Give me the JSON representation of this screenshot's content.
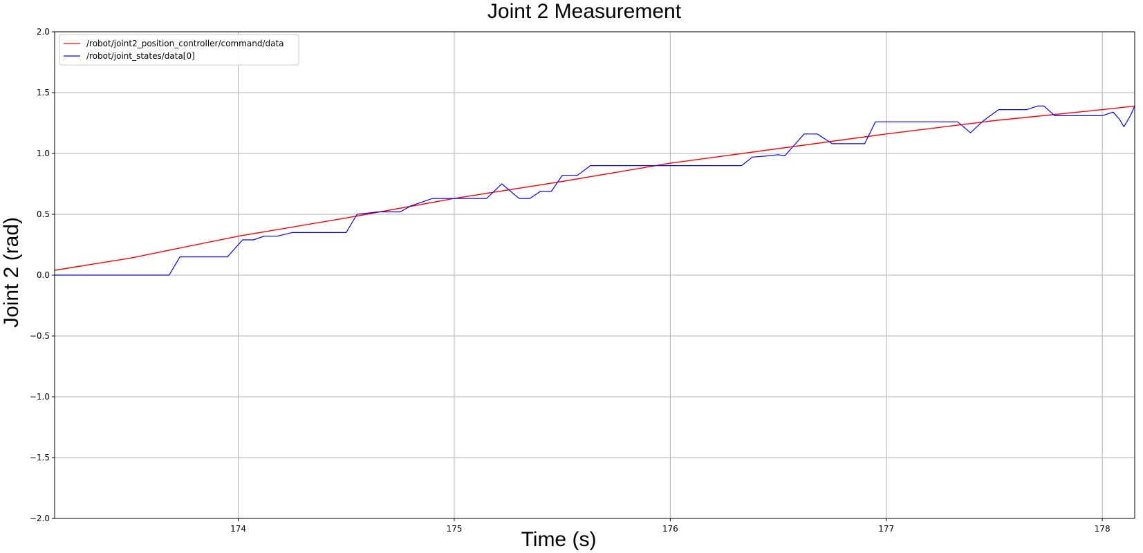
{
  "chart_data": {
    "type": "line",
    "title": "Joint 2 Measurement",
    "xlabel": "Time (s)",
    "ylabel": "Joint 2 (rad)",
    "xlim": [
      173.15,
      178.15
    ],
    "ylim": [
      -2.0,
      2.0
    ],
    "xticks": [
      174,
      175,
      176,
      177,
      178
    ],
    "xtick_labels": [
      "174",
      "175",
      "176",
      "177",
      "178"
    ],
    "yticks": [
      -2.0,
      -1.5,
      -1.0,
      -0.5,
      0.0,
      0.5,
      1.0,
      1.5,
      2.0
    ],
    "ytick_labels": [
      "−2.0",
      "−1.5",
      "−1.0",
      "−0.5",
      "0.0",
      "0.5",
      "1.0",
      "1.5",
      "2.0"
    ],
    "grid": true,
    "legend_position": "top-left",
    "series": [
      {
        "name": "/robot/joint2_position_controller/command/data",
        "color": "#ff0000",
        "x": [
          173.15,
          173.5,
          174.0,
          174.5,
          175.0,
          175.5,
          176.0,
          176.5,
          177.0,
          177.5,
          178.0,
          178.15
        ],
        "y": [
          0.04,
          0.14,
          0.32,
          0.47,
          0.63,
          0.77,
          0.92,
          1.04,
          1.16,
          1.27,
          1.36,
          1.39
        ]
      },
      {
        "name": "/robot/joint_states/data[0]",
        "color": "#0000ff",
        "x": [
          173.15,
          173.68,
          173.73,
          173.95,
          174.02,
          174.07,
          174.12,
          174.18,
          174.25,
          174.33,
          174.5,
          174.55,
          174.65,
          174.75,
          174.8,
          174.9,
          175.0,
          175.15,
          175.22,
          175.3,
          175.35,
          175.4,
          175.45,
          175.5,
          175.53,
          175.57,
          175.63,
          176.0,
          176.33,
          176.38,
          176.45,
          176.5,
          176.53,
          176.58,
          176.62,
          176.68,
          176.75,
          176.9,
          176.95,
          177.33,
          177.39,
          177.45,
          177.52,
          177.6,
          177.65,
          177.7,
          177.73,
          177.78,
          178.0,
          178.05,
          178.08,
          178.1,
          178.13,
          178.15
        ],
        "y": [
          0.0,
          0.0,
          0.15,
          0.15,
          0.29,
          0.29,
          0.32,
          0.32,
          0.35,
          0.35,
          0.35,
          0.5,
          0.52,
          0.52,
          0.57,
          0.63,
          0.63,
          0.63,
          0.75,
          0.63,
          0.63,
          0.69,
          0.69,
          0.82,
          0.82,
          0.82,
          0.9,
          0.9,
          0.9,
          0.97,
          0.98,
          0.99,
          0.98,
          1.08,
          1.16,
          1.16,
          1.08,
          1.08,
          1.26,
          1.26,
          1.17,
          1.27,
          1.36,
          1.36,
          1.36,
          1.39,
          1.39,
          1.31,
          1.31,
          1.34,
          1.28,
          1.22,
          1.31,
          1.39
        ]
      }
    ]
  }
}
